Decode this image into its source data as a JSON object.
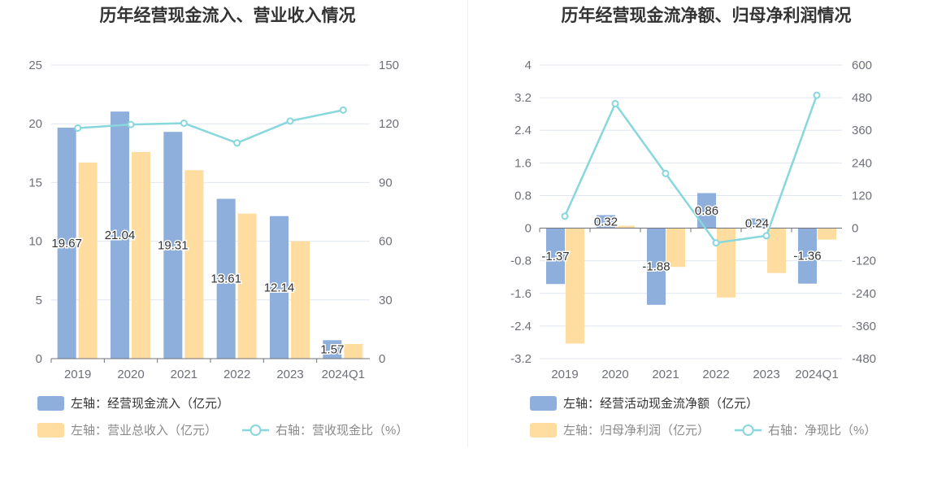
{
  "colors": {
    "bar_primary": "#8eaedc",
    "bar_secondary": "#ffdc9f",
    "line": "#87d7dc",
    "axis": "#6e7079",
    "grid": "#e0e6f1",
    "title": "#333333",
    "legend_active": "#333333",
    "legend_muted": "#8a8a8a"
  },
  "chart_data": [
    {
      "type": "bar",
      "title": "历年经营现金流入、营业收入情况",
      "categories": [
        "2019",
        "2020",
        "2021",
        "2022",
        "2023",
        "2024Q1"
      ],
      "y_left": {
        "min": 0,
        "max": 25,
        "ticks": [
          "0",
          "5",
          "10",
          "15",
          "20",
          "25"
        ]
      },
      "y_right": {
        "min": 0,
        "max": 150,
        "ticks": [
          "0",
          "30",
          "60",
          "90",
          "120",
          "150"
        ]
      },
      "series": [
        {
          "name": "左轴：经营现金流入（亿元）",
          "kind": "bar",
          "axis": "left",
          "values": [
            19.67,
            21.04,
            19.31,
            13.61,
            12.14,
            1.57
          ],
          "labels": [
            "19.67",
            "21.04",
            "19.31",
            "13.61",
            "12.14",
            "1.57"
          ]
        },
        {
          "name": "左轴：营业总收入（亿元）",
          "kind": "bar",
          "axis": "left",
          "values": [
            16.7,
            17.6,
            16.05,
            12.35,
            10.0,
            1.25
          ]
        },
        {
          "name": "右轴：营收现金比（%）",
          "kind": "line",
          "axis": "right",
          "values": [
            117.8,
            119.6,
            120.3,
            110.2,
            121.4,
            127.0
          ]
        }
      ]
    },
    {
      "type": "bar",
      "title": "历年经营现金流净额、归母净利润情况",
      "categories": [
        "2019",
        "2020",
        "2021",
        "2022",
        "2023",
        "2024Q1"
      ],
      "y_left": {
        "min": -3.2,
        "max": 4,
        "ticks": [
          "-3.2",
          "-2.4",
          "-1.6",
          "-0.8",
          "0",
          "0.8",
          "1.6",
          "2.4",
          "3.2",
          "4"
        ]
      },
      "y_right": {
        "min": -480,
        "max": 600,
        "ticks": [
          "-480",
          "-360",
          "-240",
          "-120",
          "0",
          "120",
          "240",
          "360",
          "480",
          "600"
        ]
      },
      "series": [
        {
          "name": "左轴：经营活动现金流净额（亿元）",
          "kind": "bar",
          "axis": "left",
          "values": [
            -1.37,
            0.32,
            -1.88,
            0.86,
            0.24,
            -1.36
          ],
          "labels": [
            "-1.37",
            "0.32",
            "-1.88",
            "0.86",
            "0.24",
            "-1.36"
          ]
        },
        {
          "name": "左轴：归母净利润（亿元）",
          "kind": "bar",
          "axis": "left",
          "values": [
            -2.83,
            0.06,
            -0.95,
            -1.7,
            -1.1,
            -0.28
          ]
        },
        {
          "name": "右轴：净现比（%）",
          "kind": "line",
          "axis": "right",
          "values": [
            44,
            458,
            201,
            -54,
            -28,
            489
          ]
        }
      ]
    }
  ]
}
